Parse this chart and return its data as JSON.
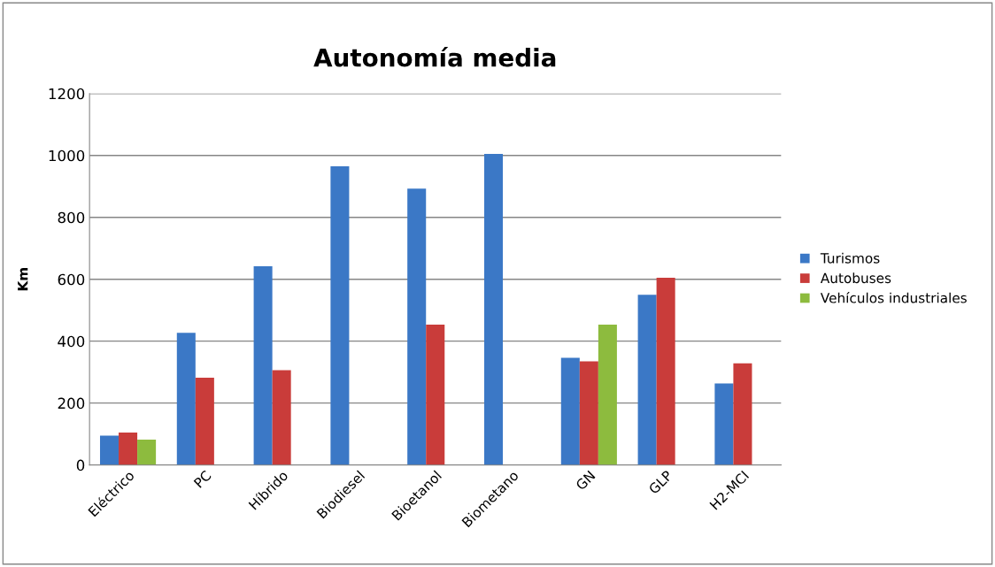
{
  "chart_data": {
    "type": "bar",
    "title": "Autonomía media",
    "ylabel": "Km",
    "categories": [
      "Eléctrico",
      "PC",
      "Híbrido",
      "Biodiesel",
      "Bioetanol",
      "Biometano",
      "GN",
      "GLP",
      "H2-MCI"
    ],
    "series": [
      {
        "name": "Turismos",
        "color": "#3b78c6",
        "values": [
          95,
          427,
          642,
          965,
          893,
          1005,
          346,
          550,
          263
        ]
      },
      {
        "name": "Autobuses",
        "color": "#c93c3a",
        "values": [
          105,
          282,
          306,
          null,
          453,
          null,
          335,
          605,
          328
        ]
      },
      {
        "name": "Vehículos industriales",
        "color": "#8dbb3e",
        "values": [
          82,
          null,
          null,
          null,
          null,
          null,
          453,
          null,
          null
        ]
      }
    ],
    "ylim": [
      0,
      1200
    ],
    "yticks": [
      0,
      200,
      400,
      600,
      800,
      1000,
      1200
    ],
    "grid": "y",
    "legend": "right"
  }
}
